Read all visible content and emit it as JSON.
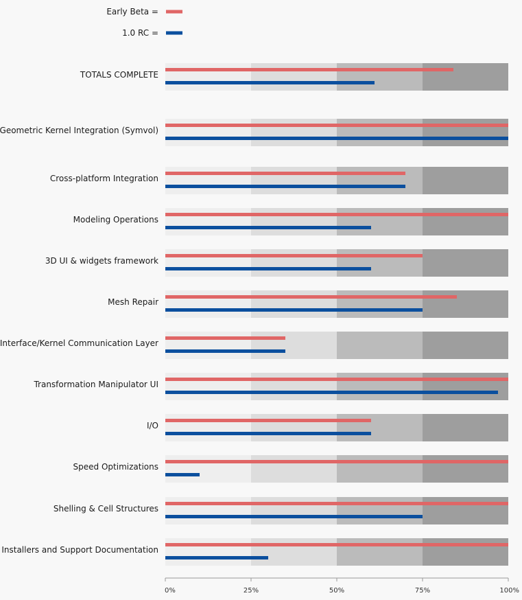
{
  "chart_data": {
    "type": "bar",
    "subtype": "bullet",
    "legend": {
      "placement": "top-left",
      "entries": [
        {
          "name": "Early Beta =",
          "color": "#e06666"
        },
        {
          "name": "1.0 RC =",
          "color": "#0b4f9e"
        }
      ]
    },
    "x_axis": {
      "range": [
        0,
        100
      ],
      "unit": "%",
      "ticks": [
        {
          "value": 0,
          "label": "0%"
        },
        {
          "value": 25,
          "label": "25%"
        },
        {
          "value": 50,
          "label": "50%"
        },
        {
          "value": 75,
          "label": "75%"
        },
        {
          "value": 100,
          "label": "100%"
        }
      ]
    },
    "ranges": [
      {
        "from": 0,
        "to": 25,
        "color": "#eeeeee"
      },
      {
        "from": 25,
        "to": 50,
        "color": "#dddddd"
      },
      {
        "from": 50,
        "to": 75,
        "color": "#bbbbbb"
      },
      {
        "from": 75,
        "to": 100,
        "color": "#9e9e9e"
      }
    ],
    "series_names": [
      "Early Beta",
      "1.0 RC"
    ],
    "series_colors": [
      "#e06666",
      "#0b4f9e"
    ],
    "categories": [
      {
        "label": "TOTALS COMPLETE",
        "early_beta": 84,
        "rc": 61
      },
      {
        "label": "Geometric Kernel Integration (Symvol)",
        "early_beta": 100,
        "rc": 100
      },
      {
        "label": "Cross-platform Integration",
        "early_beta": 70,
        "rc": 70
      },
      {
        "label": "Modeling Operations",
        "early_beta": 100,
        "rc": 60
      },
      {
        "label": "3D UI & widgets framework",
        "early_beta": 75,
        "rc": 60
      },
      {
        "label": "Mesh Repair",
        "early_beta": 85,
        "rc": 75
      },
      {
        "label": "Interface/Kernel Communication Layer",
        "early_beta": 35,
        "rc": 35
      },
      {
        "label": "Transformation Manipulator UI",
        "early_beta": 100,
        "rc": 97
      },
      {
        "label": "I/O",
        "early_beta": 60,
        "rc": 60
      },
      {
        "label": "Speed Optimizations",
        "early_beta": 100,
        "rc": 10
      },
      {
        "label": "Shelling & Cell Structures",
        "early_beta": 100,
        "rc": 75
      },
      {
        "label": "Installers and Support Documentation",
        "early_beta": 100,
        "rc": 30
      }
    ]
  }
}
